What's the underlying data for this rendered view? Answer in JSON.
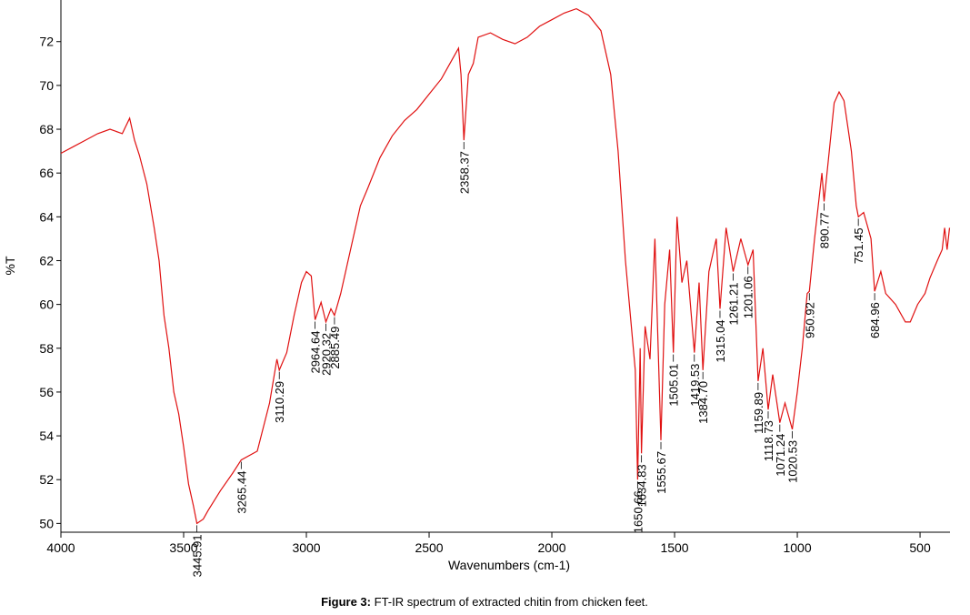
{
  "chart_data": {
    "type": "line",
    "x_label": "Wavenumbers (cm-1)",
    "y_label": "%T",
    "caption_label": "Figure 3:",
    "caption_text": "FT-IR spectrum of extracted chitin from chicken feet.",
    "xlim": [
      4000,
      378
    ],
    "ylim": [
      49.6,
      73.9
    ],
    "xticks": [
      4000,
      3500,
      3000,
      2500,
      2000,
      1500,
      1000,
      500
    ],
    "yticks": [
      50,
      52,
      54,
      56,
      58,
      60,
      62,
      64,
      66,
      68,
      70,
      72
    ],
    "series": [
      {
        "name": "%T",
        "color": "#e01010",
        "x": [
          4000,
          3950,
          3900,
          3850,
          3800,
          3750,
          3720,
          3700,
          3680,
          3650,
          3620,
          3600,
          3580,
          3560,
          3540,
          3520,
          3500,
          3480,
          3460,
          3445.91,
          3420,
          3400,
          3350,
          3300,
          3265.44,
          3200,
          3150,
          3120,
          3110.29,
          3080,
          3050,
          3020,
          3000,
          2980,
          2964.64,
          2940,
          2920.32,
          2900,
          2885.49,
          2860,
          2820,
          2780,
          2750,
          2700,
          2650,
          2600,
          2550,
          2500,
          2450,
          2400,
          2380,
          2370,
          2358.37,
          2340,
          2320,
          2300,
          2250,
          2200,
          2150,
          2100,
          2050,
          2000,
          1950,
          1900,
          1850,
          1800,
          1760,
          1730,
          1700,
          1680,
          1660,
          1650.66,
          1640,
          1634.83,
          1620,
          1600,
          1580,
          1555.67,
          1540,
          1520,
          1505.01,
          1490,
          1470,
          1450,
          1419.53,
          1400,
          1384.7,
          1360,
          1330,
          1315.04,
          1290,
          1261.21,
          1230,
          1201.06,
          1180,
          1159.89,
          1140,
          1118.73,
          1100,
          1071.24,
          1050,
          1020.53,
          1000,
          980,
          960,
          950.92,
          930,
          900,
          890.77,
          870,
          850,
          830,
          810,
          780,
          760,
          751.45,
          730,
          700,
          684.96,
          660,
          640,
          600,
          560,
          540,
          510,
          480,
          460,
          430,
          410,
          400,
          390,
          380
        ],
        "values": [
          66.9,
          67.2,
          67.5,
          67.8,
          68.0,
          67.8,
          68.5,
          67.5,
          66.8,
          65.5,
          63.5,
          62,
          59.5,
          58,
          56,
          55,
          53.5,
          51.8,
          50.8,
          50.0,
          50.2,
          50.6,
          51.5,
          52.3,
          52.9,
          53.3,
          55.5,
          57.5,
          57.0,
          57.8,
          59.5,
          61,
          61.5,
          61.3,
          59.3,
          60.1,
          59.2,
          59.8,
          59.5,
          60.5,
          62.5,
          64.5,
          65.3,
          66.7,
          67.7,
          68.4,
          68.9,
          69.6,
          70.3,
          71.3,
          71.7,
          70.5,
          67.5,
          70.5,
          71.0,
          72.2,
          72.4,
          72.1,
          71.9,
          72.2,
          72.7,
          73.0,
          73.3,
          73.5,
          73.2,
          72.5,
          70.5,
          67,
          62,
          59.5,
          57,
          52.0,
          58,
          53.2,
          59,
          57.5,
          63,
          53.8,
          60,
          62.5,
          57.8,
          64,
          61,
          62,
          57.8,
          61,
          57.0,
          61.5,
          63,
          59.8,
          63.5,
          61.5,
          63,
          61.8,
          62.5,
          56.5,
          58,
          55.2,
          56.8,
          54.6,
          55.5,
          54.3,
          56,
          58,
          60.5,
          60.6,
          63,
          66,
          64.7,
          67,
          69.2,
          69.7,
          69.3,
          67,
          64.5,
          64.0,
          64.2,
          63,
          60.6,
          61.5,
          60.5,
          60,
          59.2,
          59.2,
          60,
          60.5,
          61.2,
          62,
          62.5,
          63.5,
          62.5,
          63.5
        ]
      }
    ],
    "peaks": [
      {
        "x": 3445.91,
        "label": "3445.91"
      },
      {
        "x": 3265.44,
        "label": "3265.44"
      },
      {
        "x": 3110.29,
        "label": "3110.29"
      },
      {
        "x": 2964.64,
        "label": "2964.64"
      },
      {
        "x": 2920.32,
        "label": "2920.32"
      },
      {
        "x": 2885.49,
        "label": "2885.49"
      },
      {
        "x": 2358.37,
        "label": "2358.37"
      },
      {
        "x": 1650.66,
        "label": "1650.66"
      },
      {
        "x": 1634.83,
        "label": "1634.83"
      },
      {
        "x": 1555.67,
        "label": "1555.67"
      },
      {
        "x": 1505.01,
        "label": "1505.01"
      },
      {
        "x": 1419.53,
        "label": "1419.53"
      },
      {
        "x": 1384.7,
        "label": "1384.70"
      },
      {
        "x": 1315.04,
        "label": "1315.04"
      },
      {
        "x": 1261.21,
        "label": "1261.21"
      },
      {
        "x": 1201.06,
        "label": "1201.06"
      },
      {
        "x": 1159.89,
        "label": "1159.89"
      },
      {
        "x": 1118.73,
        "label": "1118.73"
      },
      {
        "x": 1071.24,
        "label": "1071.24"
      },
      {
        "x": 1020.53,
        "label": "1020.53"
      },
      {
        "x": 950.92,
        "label": "950.92"
      },
      {
        "x": 890.77,
        "label": "890.77"
      },
      {
        "x": 751.45,
        "label": "751.45"
      },
      {
        "x": 684.96,
        "label": "684.96"
      }
    ]
  }
}
